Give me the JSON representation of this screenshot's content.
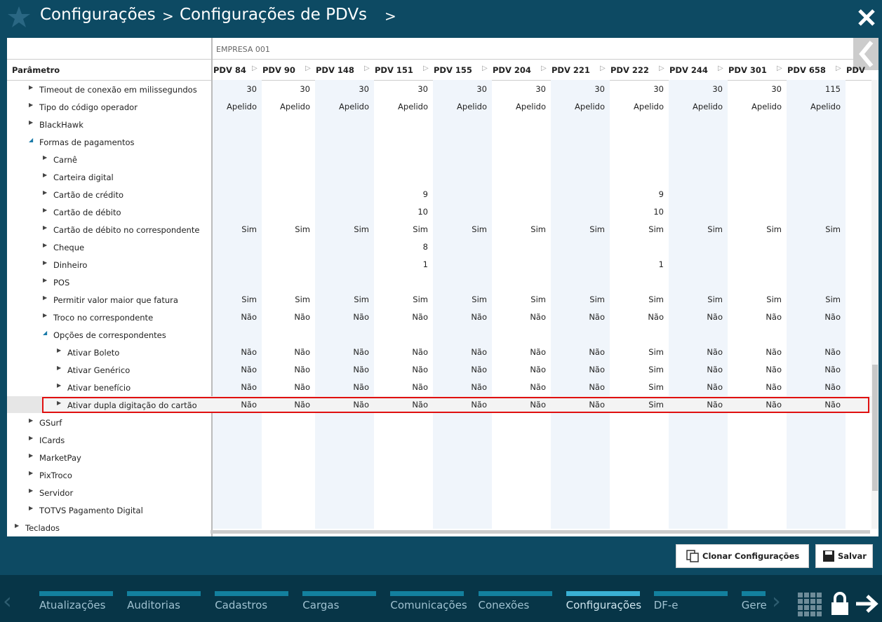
{
  "header": {
    "breadcrumb": [
      "Configurações",
      "Configurações de PDVs"
    ]
  },
  "table": {
    "company": "EMPRESA 001",
    "param_header": "Parâmetro",
    "columns": [
      "PDV 84",
      "PDV 90",
      "PDV 148",
      "PDV 151",
      "PDV 155",
      "PDV 204",
      "PDV 221",
      "PDV 222",
      "PDV 244",
      "PDV 301",
      "PDV 658",
      "PDV"
    ],
    "selected_row": 18,
    "rows": [
      {
        "label": "Timeout de conexão em milissegundos",
        "level": 1,
        "expanded": false,
        "values": [
          30,
          30,
          30,
          30,
          30,
          30,
          30,
          30,
          30,
          30,
          115
        ]
      },
      {
        "label": "Tipo do código operador",
        "level": 1,
        "expanded": false,
        "values": [
          "Apelido",
          "Apelido",
          "Apelido",
          "Apelido",
          "Apelido",
          "Apelido",
          "Apelido",
          "Apelido",
          "Apelido",
          "Apelido",
          "Apelido"
        ]
      },
      {
        "label": "BlackHawk",
        "level": 1,
        "expanded": false,
        "values": []
      },
      {
        "label": "Formas de pagamentos",
        "level": 1,
        "expanded": true,
        "values": []
      },
      {
        "label": "Carnê",
        "level": 2,
        "expanded": false,
        "values": []
      },
      {
        "label": "Carteira digital",
        "level": 2,
        "expanded": false,
        "values": []
      },
      {
        "label": "Cartão de crédito",
        "level": 2,
        "expanded": false,
        "values": [
          null,
          null,
          null,
          9,
          null,
          null,
          null,
          9,
          null,
          null,
          null
        ]
      },
      {
        "label": "Cartão de débito",
        "level": 2,
        "expanded": false,
        "values": [
          null,
          null,
          null,
          10,
          null,
          null,
          null,
          10,
          null,
          null,
          null
        ]
      },
      {
        "label": "Cartão de débito no correspondente",
        "level": 2,
        "expanded": false,
        "values": [
          "Sim",
          "Sim",
          "Sim",
          "Sim",
          "Sim",
          "Sim",
          "Sim",
          "Sim",
          "Sim",
          "Sim",
          "Sim"
        ]
      },
      {
        "label": "Cheque",
        "level": 2,
        "expanded": false,
        "values": [
          null,
          null,
          null,
          8,
          null,
          null,
          null,
          null,
          null,
          null,
          null
        ]
      },
      {
        "label": "Dinheiro",
        "level": 2,
        "expanded": false,
        "values": [
          null,
          null,
          null,
          1,
          null,
          null,
          null,
          1,
          null,
          null,
          null
        ]
      },
      {
        "label": "POS",
        "level": 2,
        "expanded": false,
        "values": []
      },
      {
        "label": "Permitir valor maior que fatura",
        "level": 2,
        "expanded": false,
        "values": [
          "Sim",
          "Sim",
          "Sim",
          "Sim",
          "Sim",
          "Sim",
          "Sim",
          "Sim",
          "Sim",
          "Sim",
          "Sim"
        ]
      },
      {
        "label": "Troco no correspondente",
        "level": 2,
        "expanded": false,
        "values": [
          "Não",
          "Não",
          "Não",
          "Não",
          "Não",
          "Não",
          "Não",
          "Não",
          "Não",
          "Não",
          "Não"
        ]
      },
      {
        "label": "Opções de correspondentes",
        "level": 2,
        "expanded": true,
        "values": []
      },
      {
        "label": "Ativar Boleto",
        "level": 3,
        "expanded": false,
        "values": [
          "Não",
          "Não",
          "Não",
          "Não",
          "Não",
          "Não",
          "Não",
          "Sim",
          "Não",
          "Não",
          "Não"
        ]
      },
      {
        "label": "Ativar Genérico",
        "level": 3,
        "expanded": false,
        "values": [
          "Não",
          "Não",
          "Não",
          "Não",
          "Não",
          "Não",
          "Não",
          "Sim",
          "Não",
          "Não",
          "Não"
        ]
      },
      {
        "label": "Ativar benefício",
        "level": 3,
        "expanded": false,
        "values": [
          "Não",
          "Não",
          "Não",
          "Não",
          "Não",
          "Não",
          "Não",
          "Sim",
          "Não",
          "Não",
          "Não"
        ]
      },
      {
        "label": "Ativar dupla digitação do cartão",
        "level": 3,
        "expanded": false,
        "values": [
          "Não",
          "Não",
          "Não",
          "Não",
          "Não",
          "Não",
          "Não",
          "Sim",
          "Não",
          "Não",
          "Não"
        ]
      },
      {
        "label": "GSurf",
        "level": 1,
        "expanded": false,
        "values": []
      },
      {
        "label": "ICards",
        "level": 1,
        "expanded": false,
        "values": []
      },
      {
        "label": "MarketPay",
        "level": 1,
        "expanded": false,
        "values": []
      },
      {
        "label": "PixTroco",
        "level": 1,
        "expanded": false,
        "values": []
      },
      {
        "label": "Servidor",
        "level": 1,
        "expanded": false,
        "values": []
      },
      {
        "label": "TOTVS Pagamento Digital",
        "level": 1,
        "expanded": false,
        "values": []
      },
      {
        "label": "Teclados",
        "level": 0,
        "expanded": false,
        "values": []
      }
    ]
  },
  "actions": [
    "Clonar Configurações",
    "Salvar"
  ],
  "nav": {
    "items": [
      "Atualizações",
      "Auditorias",
      "Cadastros",
      "Cargas",
      "Comunicações",
      "Conexões",
      "Configurações",
      "DF-e",
      "Gere"
    ],
    "active": 6
  }
}
